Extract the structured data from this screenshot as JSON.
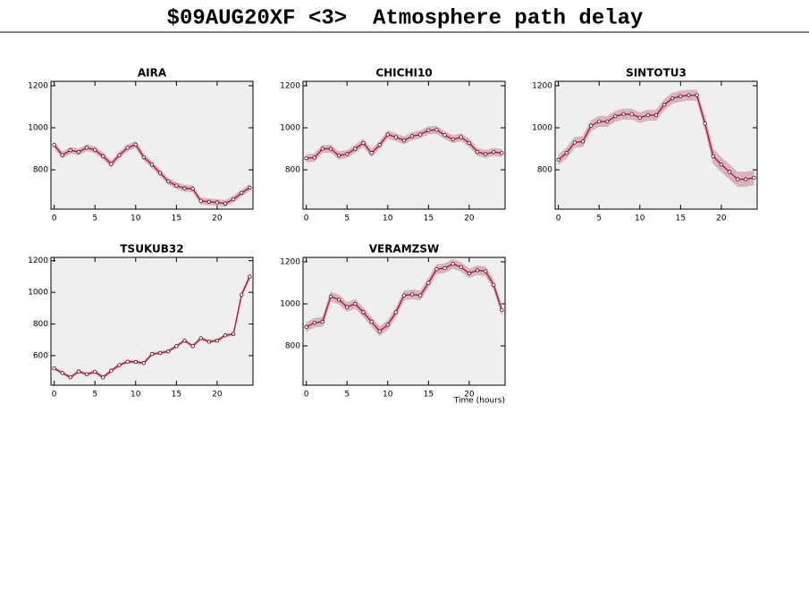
{
  "title": "$09AUG20XF <3>  Atmosphere path delay",
  "chart_data": [
    {
      "type": "line",
      "title": "AIRA",
      "color": "#b0173c",
      "band_color": "#d8b4bc",
      "background": "#efefef",
      "x": [
        0,
        1,
        2,
        3,
        4,
        5,
        6,
        7,
        8,
        9,
        10,
        11,
        12,
        13,
        14,
        15,
        16,
        17,
        18,
        19,
        20,
        21,
        22,
        23,
        24
      ],
      "values": [
        918,
        870,
        893,
        885,
        905,
        895,
        865,
        828,
        870,
        905,
        920,
        860,
        825,
        785,
        745,
        725,
        712,
        710,
        652,
        648,
        645,
        640,
        660,
        690,
        715
      ],
      "errors": [
        15,
        15,
        15,
        15,
        15,
        15,
        15,
        15,
        15,
        15,
        15,
        15,
        15,
        15,
        15,
        15,
        15,
        15,
        15,
        15,
        15,
        15,
        15,
        15,
        15
      ],
      "xlim": [
        -0.4,
        24.4
      ],
      "xticks": [
        0,
        5,
        10,
        15,
        20
      ],
      "ylim": [
        613,
        1221
      ],
      "yticks": [
        800,
        1000,
        1200
      ]
    },
    {
      "type": "line",
      "title": "CHICHI10",
      "color": "#b0173c",
      "band_color": "#d8b4bc",
      "background": "#efefef",
      "x": [
        0,
        1,
        2,
        3,
        4,
        5,
        6,
        7,
        8,
        9,
        10,
        11,
        12,
        13,
        14,
        15,
        16,
        17,
        18,
        19,
        20,
        21,
        22,
        23,
        24
      ],
      "values": [
        855,
        858,
        900,
        900,
        868,
        875,
        900,
        928,
        880,
        918,
        968,
        955,
        940,
        960,
        968,
        988,
        990,
        965,
        945,
        955,
        928,
        885,
        875,
        885,
        880
      ],
      "errors": [
        18,
        18,
        18,
        18,
        18,
        18,
        18,
        18,
        18,
        18,
        18,
        18,
        18,
        18,
        18,
        18,
        18,
        18,
        18,
        18,
        18,
        18,
        18,
        18,
        18
      ],
      "xlim": [
        -0.4,
        24.4
      ],
      "xticks": [
        0,
        5,
        10,
        15,
        20
      ],
      "ylim": [
        613,
        1221
      ],
      "yticks": [
        800,
        1000,
        1200
      ]
    },
    {
      "type": "line",
      "title": "SINTOTU3",
      "color": "#b0173c",
      "band_color": "#d8b4bc",
      "background": "#efefef",
      "x": [
        0,
        1,
        2,
        3,
        4,
        5,
        6,
        7,
        8,
        9,
        10,
        11,
        12,
        13,
        14,
        15,
        16,
        17,
        18,
        19,
        20,
        21,
        22,
        23,
        24
      ],
      "values": [
        848,
        880,
        930,
        935,
        1010,
        1030,
        1030,
        1055,
        1065,
        1065,
        1048,
        1060,
        1060,
        1110,
        1140,
        1150,
        1155,
        1155,
        1020,
        865,
        825,
        790,
        755,
        755,
        762
      ],
      "errors": [
        25,
        25,
        25,
        25,
        25,
        25,
        25,
        25,
        25,
        25,
        25,
        25,
        25,
        25,
        25,
        25,
        25,
        25,
        30,
        35,
        35,
        35,
        35,
        35,
        35
      ],
      "xlim": [
        -0.4,
        24.4
      ],
      "xticks": [
        0,
        5,
        10,
        15,
        20
      ],
      "ylim": [
        613,
        1221
      ],
      "yticks": [
        800,
        1000,
        1200
      ]
    },
    {
      "type": "line",
      "title": "TSUKUB32",
      "color": "#b0173c",
      "band_color": "#d8b4bc",
      "background": "#efefef",
      "x": [
        0,
        1,
        2,
        3,
        4,
        5,
        6,
        7,
        8,
        9,
        10,
        11,
        12,
        13,
        14,
        15,
        16,
        17,
        18,
        19,
        20,
        21,
        22,
        23,
        24
      ],
      "values": [
        520,
        490,
        463,
        500,
        482,
        498,
        462,
        505,
        540,
        562,
        560,
        553,
        610,
        617,
        627,
        660,
        695,
        660,
        710,
        688,
        695,
        728,
        737,
        985,
        1100
      ],
      "errors": [
        10,
        10,
        10,
        10,
        10,
        10,
        10,
        10,
        10,
        10,
        10,
        10,
        10,
        10,
        10,
        10,
        10,
        10,
        10,
        10,
        10,
        10,
        10,
        15,
        15
      ],
      "xlim": [
        -0.4,
        24.4
      ],
      "xticks": [
        0,
        5,
        10,
        15,
        20
      ],
      "ylim": [
        413,
        1221
      ],
      "yticks": [
        600,
        800,
        1000,
        1200
      ]
    },
    {
      "type": "line",
      "title": "VERAMZSW",
      "color": "#b0173c",
      "band_color": "#d8b4bc",
      "background": "#efefef",
      "x": [
        0,
        1,
        2,
        3,
        4,
        5,
        6,
        7,
        8,
        9,
        10,
        11,
        12,
        13,
        14,
        15,
        16,
        17,
        18,
        19,
        20,
        21,
        22,
        23,
        24
      ],
      "values": [
        890,
        910,
        915,
        1035,
        1020,
        985,
        1000,
        960,
        915,
        870,
        900,
        960,
        1040,
        1045,
        1040,
        1100,
        1165,
        1170,
        1190,
        1175,
        1145,
        1160,
        1155,
        1090,
        970
      ],
      "errors": [
        22,
        22,
        22,
        22,
        22,
        22,
        22,
        22,
        22,
        22,
        22,
        22,
        22,
        22,
        22,
        22,
        22,
        22,
        22,
        22,
        22,
        22,
        22,
        22,
        22
      ],
      "xlim": [
        -0.4,
        24.4
      ],
      "xticks": [
        0,
        5,
        10,
        15,
        20
      ],
      "ylim": [
        613,
        1221
      ],
      "yticks": [
        800,
        1000,
        1200
      ],
      "xlabel": "Time (hours)"
    }
  ]
}
